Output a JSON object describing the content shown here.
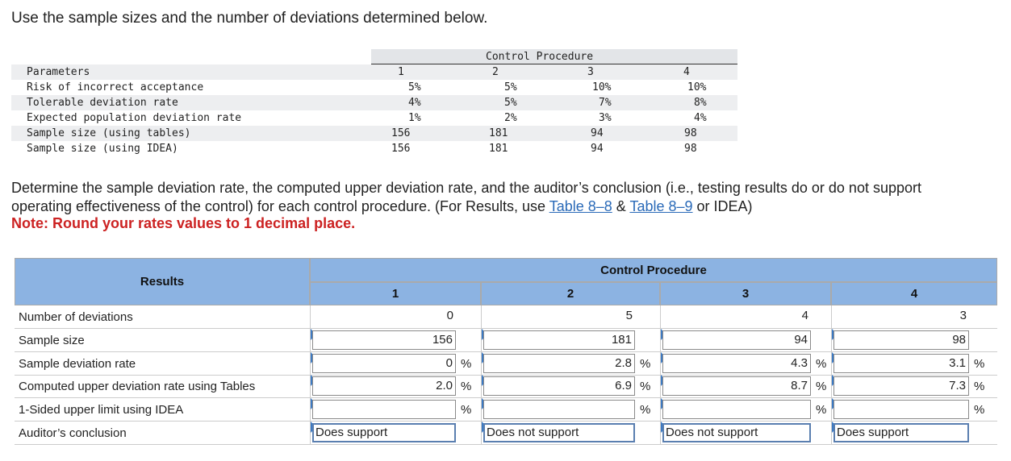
{
  "intro": "Use the sample sizes and the number of deviations determined below.",
  "params": {
    "control_title": "Control Procedure",
    "header_label": "Parameters",
    "col_headers": [
      "1",
      "2",
      "3",
      "4"
    ],
    "rows": [
      {
        "label": "Risk of incorrect acceptance",
        "values": [
          "5%",
          "5%",
          "10%",
          "10%"
        ]
      },
      {
        "label": "Tolerable deviation rate",
        "values": [
          "4%",
          "5%",
          "7%",
          "8%"
        ]
      },
      {
        "label": "Expected population deviation rate",
        "values": [
          "1%",
          "2%",
          "3%",
          "4%"
        ]
      },
      {
        "label": "Sample size (using tables)",
        "values": [
          "156",
          "181",
          "94",
          "98"
        ]
      },
      {
        "label": "Sample size (using IDEA)",
        "values": [
          "156",
          "181",
          "94",
          "98"
        ]
      }
    ]
  },
  "instruction": {
    "text_part1": "Determine the sample deviation rate, the computed upper deviation rate, and the auditor’s conclusion (i.e., testing results do or do not support operating effectiveness of the control) for each control procedure. (For Results, use ",
    "link1": "Table 8–8",
    "amp": " & ",
    "link2": "Table 8–9",
    "text_part2": " or IDEA)",
    "note": "Note: Round your rates values to 1 decimal place."
  },
  "results": {
    "header_results": "Results",
    "header_control": "Control Procedure",
    "cols": [
      "1",
      "2",
      "3",
      "4"
    ],
    "pct_symbol": "%",
    "row_labels": [
      "Number of deviations",
      "Sample size",
      "Sample deviation rate",
      "Computed upper deviation rate using Tables",
      "1-Sided upper limit using IDEA",
      "Auditor’s conclusion"
    ],
    "deviations": [
      "0",
      "5",
      "4",
      "3"
    ],
    "sample_size": [
      "156",
      "181",
      "94",
      "98"
    ],
    "sample_rate": [
      "0",
      "2.8",
      "4.3",
      "3.1"
    ],
    "upper_rate": [
      "2.0",
      "6.9",
      "8.7",
      "7.3"
    ],
    "idea_limit": [
      "",
      "",
      "",
      ""
    ],
    "conclusion": [
      "Does support",
      "Does not support",
      "Does not support",
      "Does support"
    ]
  }
}
